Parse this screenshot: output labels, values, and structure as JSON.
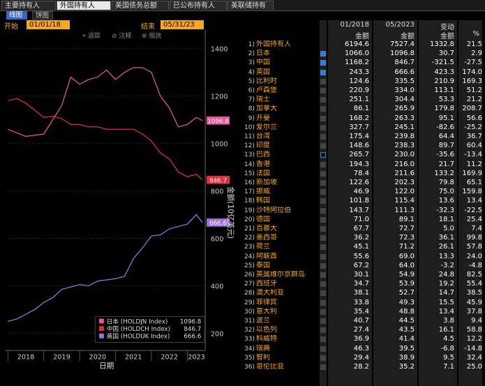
{
  "tabs": [
    "主要持有人",
    "外国持有人",
    "美国债务总额",
    "已公布持有人",
    "美联储持有"
  ],
  "subtabs": [
    "线图",
    "饼图"
  ],
  "date_range": {
    "start_label": "开始",
    "start": "01/01/18",
    "end_label": "结束",
    "end": "05/31/23"
  },
  "chart_tools": {
    "track": "追踪",
    "annotate": "注释",
    "zoom": "缩放"
  },
  "chart_data": {
    "type": "line",
    "x": [
      2018.0,
      2018.25,
      2018.5,
      2018.75,
      2019.0,
      2019.25,
      2019.5,
      2019.75,
      2020.0,
      2020.25,
      2020.5,
      2020.75,
      2021.0,
      2021.25,
      2021.5,
      2021.75,
      2022.0,
      2022.25,
      2022.5,
      2022.75,
      2023.0,
      2023.25,
      2023.42
    ],
    "ylim": [
      150,
      1450
    ],
    "yticks": [
      200,
      400,
      600,
      800,
      1000,
      1200,
      1400
    ],
    "ytick_labels": [
      "200",
      "400",
      "600",
      "800",
      "1000",
      "1200",
      "1400"
    ],
    "xtick_labels": [
      "2018",
      "2019",
      "2020",
      "2021",
      "2022",
      "2023"
    ],
    "ylabel": "金额(10亿美元)",
    "xlabel": "日期",
    "series": [
      {
        "name": "日本 (HOLDJN Index)",
        "color": "#e8559a",
        "last": "1096.8",
        "values": [
          1060,
          1045,
          1030,
          1035,
          1040,
          1100,
          1160,
          1280,
          1250,
          1270,
          1280,
          1310,
          1270,
          1300,
          1320,
          1320,
          1300,
          1200,
          1150,
          1070,
          1080,
          1110,
          1096.8
        ]
      },
      {
        "name": "中国 (HOLDCH Index)",
        "color": "#e0303a",
        "last": "846.7",
        "values": [
          1180,
          1190,
          1170,
          1140,
          1110,
          1115,
          1105,
          1080,
          1080,
          1070,
          1070,
          1060,
          1060,
          1060,
          1060,
          1040,
          1010,
          960,
          935,
          880,
          860,
          870,
          846.7
        ]
      },
      {
        "name": "英国 (HOLDUK Index)",
        "color": "#a070e0",
        "last": "666.6",
        "values": [
          250,
          260,
          280,
          300,
          330,
          350,
          385,
          395,
          405,
          400,
          420,
          425,
          430,
          440,
          515,
          560,
          610,
          615,
          640,
          650,
          660,
          700,
          666.6
        ]
      }
    ]
  },
  "table": {
    "header": {
      "col1": "01/2018",
      "col2": "05/2023",
      "col3": "变动",
      "col4": "%"
    },
    "subheader": {
      "col1": "金额",
      "col2": "金额",
      "col3": "金额",
      "col4": "%"
    },
    "rows": [
      {
        "n": "1)",
        "name": "外国持有人",
        "a": "6194.6",
        "b": "7527.4",
        "c": "1332.8",
        "d": "21.5",
        "chk": "none"
      },
      {
        "n": "2)",
        "name": "日本",
        "a": "1066.0",
        "b": "1096.8",
        "c": "30.7",
        "d": "2.9",
        "chk": "on"
      },
      {
        "n": "3)",
        "name": "中国",
        "a": "1168.2",
        "b": "846.7",
        "c": "-321.5",
        "d": "-27.5",
        "chk": "on"
      },
      {
        "n": "4)",
        "name": "英国",
        "a": "243.3",
        "b": "666.6",
        "c": "423.3",
        "d": "174.0",
        "chk": "on"
      },
      {
        "n": "5)",
        "name": "比利时",
        "a": "124.6",
        "b": "335.5",
        "c": "210.9",
        "d": "169.3",
        "chk": "off"
      },
      {
        "n": "6)",
        "name": "卢森堡",
        "a": "220.9",
        "b": "334.0",
        "c": "113.1",
        "d": "51.2",
        "chk": "off"
      },
      {
        "n": "7)",
        "name": "瑞士",
        "a": "251.1",
        "b": "304.4",
        "c": "53.3",
        "d": "21.2",
        "chk": "off"
      },
      {
        "n": "8)",
        "name": "加拿大",
        "a": "86.1",
        "b": "265.9",
        "c": "179.8",
        "d": "208.7",
        "chk": "off"
      },
      {
        "n": "9)",
        "name": "开曼",
        "a": "168.2",
        "b": "263.3",
        "c": "95.1",
        "d": "56.6",
        "chk": "off"
      },
      {
        "n": "10)",
        "name": "爱尔兰",
        "a": "327.7",
        "b": "245.1",
        "c": "-82.6",
        "d": "-25.2",
        "chk": "off"
      },
      {
        "n": "11)",
        "name": "台湾",
        "a": "175.4",
        "b": "239.8",
        "c": "64.4",
        "d": "36.7",
        "chk": "off"
      },
      {
        "n": "12)",
        "name": "印度",
        "a": "148.6",
        "b": "238.3",
        "c": "89.7",
        "d": "60.4",
        "chk": "off"
      },
      {
        "n": "13)",
        "name": "巴西",
        "a": "265.7",
        "b": "230.0",
        "c": "-35.6",
        "d": "-13.4",
        "chk": "sel"
      },
      {
        "n": "14)",
        "name": "香港",
        "a": "194.3",
        "b": "216.0",
        "c": "21.7",
        "d": "11.2",
        "chk": "off"
      },
      {
        "n": "15)",
        "name": "法国",
        "a": "78.4",
        "b": "211.6",
        "c": "133.2",
        "d": "169.9",
        "chk": "off"
      },
      {
        "n": "16)",
        "name": "新加坡",
        "a": "122.6",
        "b": "202.3",
        "c": "79.8",
        "d": "65.1",
        "chk": "off"
      },
      {
        "n": "17)",
        "name": "挪威",
        "a": "46.9",
        "b": "122.0",
        "c": "75.0",
        "d": "159.8",
        "chk": "off"
      },
      {
        "n": "18)",
        "name": "韩国",
        "a": "101.8",
        "b": "115.4",
        "c": "13.6",
        "d": "13.4",
        "chk": "off"
      },
      {
        "n": "19)",
        "name": "沙特阿拉伯",
        "a": "143.7",
        "b": "111.3",
        "c": "-32.3",
        "d": "-22.5",
        "chk": "off"
      },
      {
        "n": "20)",
        "name": "德国",
        "a": "71.0",
        "b": "89.1",
        "c": "18.1",
        "d": "25.4",
        "chk": "off"
      },
      {
        "n": "21)",
        "name": "百慕大",
        "a": "67.7",
        "b": "72.7",
        "c": "5.0",
        "d": "7.4",
        "chk": "off"
      },
      {
        "n": "22)",
        "name": "墨西哥",
        "a": "36.2",
        "b": "72.3",
        "c": "36.1",
        "d": "99.8",
        "chk": "off"
      },
      {
        "n": "23)",
        "name": "荷兰",
        "a": "45.1",
        "b": "71.2",
        "c": "26.1",
        "d": "57.8",
        "chk": "off"
      },
      {
        "n": "24)",
        "name": "阿联酋",
        "a": "55.6",
        "b": "69.0",
        "c": "13.3",
        "d": "24.0",
        "chk": "off"
      },
      {
        "n": "25)",
        "name": "泰国",
        "a": "67.2",
        "b": "64.0",
        "c": "-3.2",
        "d": "-4.8",
        "chk": "off"
      },
      {
        "n": "26)",
        "name": "英属维尔京群岛",
        "a": "30.1",
        "b": "54.9",
        "c": "24.8",
        "d": "82.5",
        "chk": "off"
      },
      {
        "n": "27)",
        "name": "西班牙",
        "a": "34.7",
        "b": "53.9",
        "c": "19.2",
        "d": "55.4",
        "chk": "off"
      },
      {
        "n": "28)",
        "name": "澳大利亚",
        "a": "38.1",
        "b": "52.7",
        "c": "14.7",
        "d": "38.5",
        "chk": "off"
      },
      {
        "n": "29)",
        "name": "菲律宾",
        "a": "33.8",
        "b": "49.3",
        "c": "15.5",
        "d": "45.9",
        "chk": "off"
      },
      {
        "n": "30)",
        "name": "意大利",
        "a": "35.4",
        "b": "48.8",
        "c": "13.4",
        "d": "37.8",
        "chk": "off"
      },
      {
        "n": "31)",
        "name": "波兰",
        "a": "40.7",
        "b": "44.5",
        "c": "3.8",
        "d": "9.4",
        "chk": "off"
      },
      {
        "n": "32)",
        "name": "以色列",
        "a": "27.4",
        "b": "43.5",
        "c": "16.1",
        "d": "58.8",
        "chk": "off"
      },
      {
        "n": "33)",
        "name": "科威特",
        "a": "36.9",
        "b": "41.4",
        "c": "4.5",
        "d": "12.2",
        "chk": "off"
      },
      {
        "n": "34)",
        "name": "瑞典",
        "a": "46.3",
        "b": "39.5",
        "c": "-6.8",
        "d": "-14.8",
        "chk": "off"
      },
      {
        "n": "35)",
        "name": "智利",
        "a": "29.4",
        "b": "38.9",
        "c": "9.5",
        "d": "32.4",
        "chk": "off"
      },
      {
        "n": "36)",
        "name": "哥伦比亚",
        "a": "28.2",
        "b": "35.2",
        "c": "7.1",
        "d": "25.0",
        "chk": "off"
      }
    ]
  }
}
